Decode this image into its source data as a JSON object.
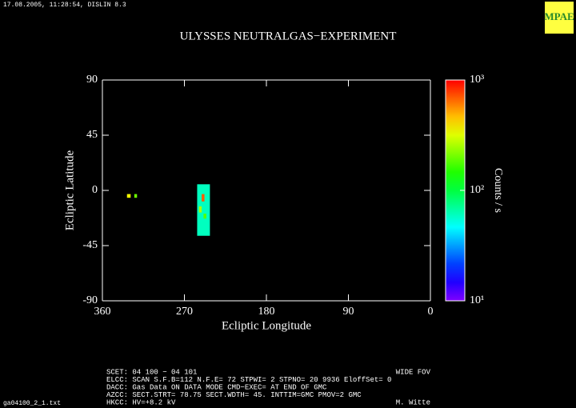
{
  "header": {
    "stamp": "17.08.2005, 11:28:54, DISLIN 8.3",
    "logo": "MPAE",
    "file": "ga04100_2_1.txt"
  },
  "info": {
    "lines": [
      "SCET: 04 100 − 04 101",
      "ELCC: SCAN  S.F.B=112 N.F.E= 72 STPWI=  2  STPNO= 20   9936   EloffSet= 0",
      "DACC: Gas Data ON    DATA MODE CMD−EXEC= AT END OF GMC",
      "AZCC: SECT.STRT= 78.75 SECT.WDTH= 45. INTTIM=GMC PMOV=2 GMC",
      "HKCC: HV=+8.2 kV"
    ],
    "fov": "WIDE FOV",
    "author": "M. Witte"
  },
  "chart_data": {
    "type": "heatmap",
    "title": "ULYSSES NEUTRALGAS−EXPERIMENT",
    "x_label": "Ecliptic Longitude",
    "y_label": "Ecliptic Latitude",
    "xlim": [
      360,
      0
    ],
    "xticks": [
      360,
      270,
      180,
      90,
      0
    ],
    "ylim": [
      -90,
      90
    ],
    "yticks": [
      -90,
      -45,
      0,
      45,
      90
    ],
    "colorbar": {
      "label": "Counts / s",
      "scale": "log",
      "lim": [
        10,
        1000
      ],
      "ticks": [
        {
          "value": 10,
          "label": "10¹"
        },
        {
          "value": 100,
          "label": "10²"
        },
        {
          "value": 1000,
          "label": "10³"
        }
      ]
    },
    "cells": [
      {
        "lon": [
          256,
          242
        ],
        "lat": [
          5,
          -37
        ],
        "value": 60
      },
      {
        "lon": [
          251,
          248
        ],
        "lat": [
          -3,
          -9
        ],
        "value": 700
      },
      {
        "lon": [
          254,
          251
        ],
        "lat": [
          -13,
          -18
        ],
        "value": 250
      },
      {
        "lon": [
          249,
          246
        ],
        "lat": [
          -19,
          -23
        ],
        "value": 180
      },
      {
        "lon": [
          333,
          329
        ],
        "lat": [
          -3,
          -6
        ],
        "value": 350
      },
      {
        "lon": [
          325,
          322
        ],
        "lat": [
          -3,
          -6
        ],
        "value": 200
      }
    ]
  }
}
